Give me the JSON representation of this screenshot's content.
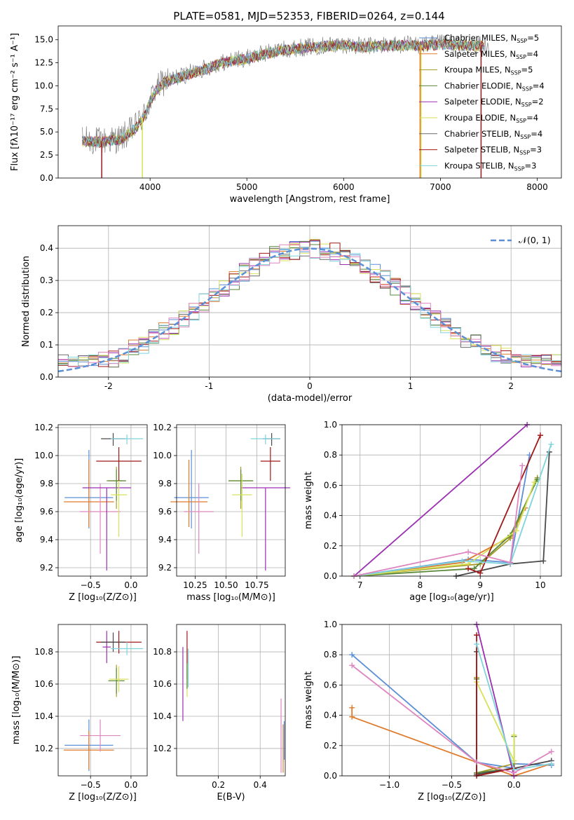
{
  "title": "PLATE=0581, MJD=52353, FIBERID=0264, z=0.144",
  "colors": {
    "blue": "#5b8fd6",
    "orange": "#e07b2c",
    "olive": "#a89a2a",
    "green": "#5a8a3a",
    "purple": "#9a2fb0",
    "yellow": "#d6e25a",
    "gray": "#6b6b6b",
    "red": "#a01818",
    "cyan": "#7fd3dc",
    "pink": "#de86bf",
    "dark": "#4a4a4a",
    "lime": "#c9e55b",
    "dash": "#5b8fd6"
  },
  "chart_data": [
    {
      "id": "spectrum",
      "type": "line",
      "title": "PLATE=0581, MJD=52353, FIBERID=0264, z=0.144",
      "xlabel": "wavelength [Angstrom, rest frame]",
      "ylabel": "Flux [fλ10⁻¹⁷ erg cm⁻² s⁻¹ A⁻¹]",
      "xlim": [
        3050,
        8250
      ],
      "ylim": [
        0,
        16.5
      ],
      "xticks": [
        4000,
        5000,
        6000,
        7000,
        8000
      ],
      "yticks": [
        0.0,
        2.5,
        5.0,
        7.5,
        10.0,
        12.5,
        15.0
      ],
      "grid": false,
      "legend_position": "top-right",
      "continuum": {
        "x": [
          3300,
          3500,
          3700,
          3850,
          3950,
          4050,
          4150,
          4300,
          4500,
          4700,
          4850,
          5000,
          5200,
          5400,
          5600,
          5800,
          6000,
          6200,
          6400,
          6600,
          6800,
          7000,
          7200,
          7400
        ],
        "y": [
          4.1,
          4.0,
          4.3,
          5.5,
          7.0,
          9.5,
          10.5,
          11.0,
          11.7,
          12.4,
          12.8,
          13.0,
          13.6,
          14.0,
          14.2,
          14.4,
          14.5,
          14.3,
          14.4,
          14.5,
          14.4,
          14.6,
          14.5,
          14.4
        ]
      },
      "series": [
        {
          "name": "Chabrier MILES, N$_{SSP}$=5",
          "label": "Chabrier MILES, N",
          "n": "5",
          "color": "#5b8fd6"
        },
        {
          "name": "Salpeter MILES, N$_{SSP}$=4",
          "label": "Salpeter MILES, N",
          "n": "4",
          "color": "#e07b2c"
        },
        {
          "name": "Kroupa MILES, N$_{SSP}$=5",
          "label": "Kroupa MILES, N",
          "n": "5",
          "color": "#a89a2a"
        },
        {
          "name": "Chabrier ELODIE, N$_{SSP}$=4",
          "label": "Chabrier ELODIE, N",
          "n": "4",
          "color": "#5a8a3a"
        },
        {
          "name": "Salpeter ELODIE, N$_{SSP}$=2",
          "label": "Salpeter ELODIE, N",
          "n": "2",
          "color": "#9a2fb0"
        },
        {
          "name": "Kroupa ELODIE, N$_{SSP}$=4",
          "label": "Kroupa ELODIE, N",
          "n": "4",
          "color": "#d6e25a"
        },
        {
          "name": "Chabrier STELIB, N$_{SSP}$=4",
          "label": "Chabrier STELIB, N",
          "n": "4",
          "color": "#6b6b6b"
        },
        {
          "name": "Salpeter STELIB, N$_{SSP}$=3",
          "label": "Salpeter STELIB, N",
          "n": "3",
          "color": "#a01818"
        },
        {
          "name": "Kroupa STELIB, N$_{SSP}$=3",
          "label": "Kroupa STELIB, N",
          "n": "3",
          "color": "#7fd3dc"
        }
      ],
      "sub_label": "SSP",
      "spikes": [
        {
          "x": 3500,
          "color": "#a01818"
        },
        {
          "x": 3920,
          "color": "#d6e25a"
        },
        {
          "x": 6800,
          "color": "#d6e25a"
        },
        {
          "x": 6790,
          "color": "#e07b2c"
        },
        {
          "x": 7420,
          "color": "#a01818"
        }
      ]
    },
    {
      "id": "residuals",
      "type": "line",
      "xlabel": "(data-model)/error",
      "ylabel": "Normed distribution",
      "xlim": [
        -2.5,
        2.5
      ],
      "ylim": [
        0,
        0.47
      ],
      "xticks": [
        -2,
        -1,
        0,
        1,
        2
      ],
      "yticks": [
        0.0,
        0.1,
        0.2,
        0.3,
        0.4
      ],
      "grid": true,
      "legend_position": "top-right",
      "legend_label": "𝒩(0, 1)",
      "bin_width": 0.1,
      "hist_colors": [
        "#5b8fd6",
        "#e07b2c",
        "#5a8a3a",
        "#9a2fb0",
        "#d6e25a",
        "#6b6b6b",
        "#a01818",
        "#7fd3dc",
        "#de86bf"
      ]
    },
    {
      "id": "age-vs-Z",
      "type": "scatter",
      "xlabel": "Z [log₁₀(Z/Z⊙)]",
      "ylabel": "age  [log₁₀(age/yr)]",
      "xlim": [
        -0.9,
        0.2
      ],
      "ylim": [
        9.14,
        10.22
      ],
      "xticks": [
        -0.5,
        0.0
      ],
      "xticklabels": [
        "−0.5",
        "0.0"
      ],
      "yticks": [
        9.2,
        9.4,
        9.6,
        9.8,
        10.0,
        10.2
      ],
      "grid": true,
      "points": [
        {
          "x": -0.52,
          "y": 9.7,
          "xerr": 0.3,
          "yerr_lo": 0.22,
          "yerr_hi": 0.34,
          "color": "#5b8fd6"
        },
        {
          "x": -0.52,
          "y": 9.67,
          "xerr": 0.31,
          "yerr_lo": 0.18,
          "yerr_hi": 0.3,
          "color": "#e07b2c"
        },
        {
          "x": -0.38,
          "y": 9.6,
          "xerr": 0.25,
          "yerr_lo": 0.3,
          "yerr_hi": 0.2,
          "color": "#de86bf"
        },
        {
          "x": -0.3,
          "y": 9.77,
          "xerr": 0.3,
          "yerr_lo": 0.59,
          "yerr_hi": 0.0,
          "color": "#9a2fb0"
        },
        {
          "x": -0.18,
          "y": 9.82,
          "xerr": 0.1,
          "yerr_lo": 0.2,
          "yerr_hi": 0.1,
          "color": "#a89a2a"
        },
        {
          "x": -0.18,
          "y": 9.82,
          "xerr": 0.12,
          "yerr_lo": 0.14,
          "yerr_hi": 0.08,
          "color": "#5a8a3a"
        },
        {
          "x": -0.15,
          "y": 9.72,
          "xerr": 0.1,
          "yerr_lo": 0.3,
          "yerr_hi": 0.15,
          "color": "#d6e25a"
        },
        {
          "x": -0.15,
          "y": 9.96,
          "xerr": 0.28,
          "yerr_lo": 0.14,
          "yerr_hi": 0.1,
          "color": "#a01818"
        },
        {
          "x": -0.22,
          "y": 10.12,
          "xerr": 0.15,
          "yerr_lo": 0.05,
          "yerr_hi": 0.04,
          "color": "#4a4a4a"
        },
        {
          "x": -0.05,
          "y": 10.12,
          "xerr": 0.2,
          "yerr_lo": 0.04,
          "yerr_hi": 0.03,
          "color": "#7fd3dc"
        }
      ]
    },
    {
      "id": "age-vs-mass",
      "type": "scatter",
      "xlabel": "mass [log₁₀(M/M⊙)]",
      "ylabel": "",
      "xlim": [
        10.1,
        10.98
      ],
      "ylim": [
        9.14,
        10.22
      ],
      "xticks": [
        10.25,
        10.5,
        10.75
      ],
      "xticklabels": [
        "10.25",
        "10.50",
        "10.75"
      ],
      "yticks": [
        9.2,
        9.4,
        9.6,
        9.8,
        10.0,
        10.2
      ],
      "grid": true,
      "points": [
        {
          "x": 10.22,
          "y": 9.7,
          "xerr": 0.14,
          "yerr_lo": 0.22,
          "yerr_hi": 0.34,
          "color": "#5b8fd6"
        },
        {
          "x": 10.2,
          "y": 9.67,
          "xerr": 0.15,
          "yerr_lo": 0.18,
          "yerr_hi": 0.3,
          "color": "#e07b2c"
        },
        {
          "x": 10.28,
          "y": 9.6,
          "xerr": 0.12,
          "yerr_lo": 0.3,
          "yerr_hi": 0.2,
          "color": "#de86bf"
        },
        {
          "x": 10.82,
          "y": 9.77,
          "xerr": 0.2,
          "yerr_lo": 0.59,
          "yerr_hi": 0.0,
          "color": "#9a2fb0"
        },
        {
          "x": 10.62,
          "y": 9.82,
          "xerr": 0.1,
          "yerr_lo": 0.2,
          "yerr_hi": 0.1,
          "color": "#a89a2a"
        },
        {
          "x": 10.62,
          "y": 9.82,
          "xerr": 0.1,
          "yerr_lo": 0.14,
          "yerr_hi": 0.08,
          "color": "#5a8a3a"
        },
        {
          "x": 10.63,
          "y": 9.72,
          "xerr": 0.08,
          "yerr_lo": 0.3,
          "yerr_hi": 0.15,
          "color": "#d6e25a"
        },
        {
          "x": 10.86,
          "y": 9.96,
          "xerr": 0.08,
          "yerr_lo": 0.14,
          "yerr_hi": 0.1,
          "color": "#a01818"
        },
        {
          "x": 10.87,
          "y": 10.12,
          "xerr": 0.07,
          "yerr_lo": 0.05,
          "yerr_hi": 0.04,
          "color": "#4a4a4a"
        },
        {
          "x": 10.82,
          "y": 10.12,
          "xerr": 0.12,
          "yerr_lo": 0.04,
          "yerr_hi": 0.03,
          "color": "#7fd3dc"
        }
      ]
    },
    {
      "id": "massweight-vs-age",
      "type": "line",
      "xlabel": "age  [log₁₀(age/yr)]",
      "ylabel": "mass weight",
      "xlim": [
        6.7,
        10.35
      ],
      "ylim": [
        0,
        1.0
      ],
      "xticks": [
        7,
        8,
        9,
        10
      ],
      "yticks": [
        0.0,
        0.2,
        0.4,
        0.6,
        0.8,
        1.0
      ],
      "grid": true,
      "series": [
        {
          "color": "#5b8fd6",
          "x": [
            6.9,
            8.8,
            9.5,
            9.82
          ],
          "y": [
            0.0,
            0.11,
            0.09,
            0.8
          ]
        },
        {
          "color": "#e07b2c",
          "x": [
            6.9,
            8.7,
            9.5,
            9.75
          ],
          "y": [
            0.0,
            0.09,
            0.26,
            0.45
          ]
        },
        {
          "color": "#a89a2a",
          "x": [
            6.9,
            9.0,
            9.5,
            9.95
          ],
          "y": [
            0.0,
            0.08,
            0.25,
            0.65
          ]
        },
        {
          "color": "#5a8a3a",
          "x": [
            6.9,
            8.9,
            9.5,
            9.95
          ],
          "y": [
            0.0,
            0.05,
            0.27,
            0.64
          ]
        },
        {
          "color": "#9a2fb0",
          "x": [
            6.9,
            9.78
          ],
          "y": [
            0.0,
            1.0
          ]
        },
        {
          "color": "#d6e25a",
          "x": [
            6.9,
            8.8,
            9.6,
            9.9
          ],
          "y": [
            0.0,
            0.08,
            0.3,
            0.62
          ]
        },
        {
          "color": "#4a4a4a",
          "x": [
            8.6,
            9.5,
            10.05,
            10.15
          ],
          "y": [
            0.0,
            0.08,
            0.1,
            0.82
          ]
        },
        {
          "color": "#a01818",
          "x": [
            8.8,
            9.0,
            10.0
          ],
          "y": [
            0.05,
            0.02,
            0.93
          ]
        },
        {
          "color": "#7fd3dc",
          "x": [
            6.9,
            8.7,
            9.5,
            10.18
          ],
          "y": [
            0.0,
            0.1,
            0.08,
            0.87
          ]
        },
        {
          "color": "#de86bf",
          "x": [
            6.9,
            8.8,
            9.5,
            9.7
          ],
          "y": [
            0.0,
            0.16,
            0.09,
            0.73
          ]
        }
      ]
    },
    {
      "id": "mass-vs-Z",
      "type": "scatter",
      "xlabel": "Z [log₁₀(Z/Z⊙)]",
      "ylabel": "mass [log₁₀(M/M⊙)]",
      "xlim": [
        -0.9,
        0.2
      ],
      "ylim": [
        10.03,
        10.97
      ],
      "xticks": [
        -0.5,
        0.0
      ],
      "xticklabels": [
        "−0.5",
        "0.0"
      ],
      "yticks": [
        10.2,
        10.4,
        10.6,
        10.8
      ],
      "grid": true,
      "points": [
        {
          "x": -0.52,
          "y": 10.22,
          "xerr": 0.3,
          "yerr": 0.16,
          "color": "#5b8fd6"
        },
        {
          "x": -0.52,
          "y": 10.19,
          "xerr": 0.31,
          "yerr": 0.12,
          "color": "#e07b2c"
        },
        {
          "x": -0.38,
          "y": 10.28,
          "xerr": 0.25,
          "yerr": 0.1,
          "color": "#de86bf"
        },
        {
          "x": -0.3,
          "y": 10.83,
          "xerr": 0.05,
          "yerr": 0.1,
          "color": "#9a2fb0"
        },
        {
          "x": -0.18,
          "y": 10.62,
          "xerr": 0.1,
          "yerr": 0.1,
          "color": "#a89a2a"
        },
        {
          "x": -0.18,
          "y": 10.62,
          "xerr": 0.1,
          "yerr": 0.08,
          "color": "#5a8a3a"
        },
        {
          "x": -0.15,
          "y": 10.63,
          "xerr": 0.12,
          "yerr": 0.08,
          "color": "#d6e25a"
        },
        {
          "x": -0.15,
          "y": 10.86,
          "xerr": 0.28,
          "yerr": 0.07,
          "color": "#a01818"
        },
        {
          "x": -0.22,
          "y": 10.86,
          "xerr": 0.15,
          "yerr": 0.06,
          "color": "#4a4a4a"
        },
        {
          "x": -0.05,
          "y": 10.82,
          "xerr": 0.2,
          "yerr": 0.04,
          "color": "#7fd3dc"
        }
      ]
    },
    {
      "id": "mass-vs-EBV",
      "type": "scatter",
      "xlabel": "E(B-V)",
      "ylabel": "",
      "xlim": [
        0.0,
        0.52
      ],
      "ylim": [
        10.03,
        10.97
      ],
      "xticks": [
        0.2,
        0.4
      ],
      "xticklabels": [
        "0.2",
        "0.4"
      ],
      "yticks": [
        10.2,
        10.4,
        10.6,
        10.8
      ],
      "grid": true,
      "points": [
        {
          "x": 0.03,
          "y": 10.6,
          "yerr": 0.23,
          "color": "#9a2fb0"
        },
        {
          "x": 0.05,
          "y": 10.78,
          "yerr": 0.15,
          "color": "#a01818"
        },
        {
          "x": 0.055,
          "y": 10.7,
          "yerr": 0.12,
          "color": "#7fd3dc"
        },
        {
          "x": 0.05,
          "y": 10.62,
          "yerr": 0.1,
          "color": "#d6e25a"
        },
        {
          "x": 0.05,
          "y": 10.65,
          "yerr": 0.08,
          "color": "#5a8a3a"
        },
        {
          "x": 0.5,
          "y": 10.28,
          "yerr": 0.23,
          "color": "#de86bf"
        },
        {
          "x": 0.51,
          "y": 10.2,
          "yerr": 0.15,
          "color": "#e07b2c"
        },
        {
          "x": 0.515,
          "y": 10.25,
          "yerr": 0.12,
          "color": "#5b8fd6"
        }
      ]
    },
    {
      "id": "massweight-vs-Z",
      "type": "line",
      "xlabel": "Z [log₁₀(Z/Z⊙)]",
      "ylabel": "mass weight",
      "xlim": [
        -1.38,
        0.38
      ],
      "ylim": [
        0,
        1.0
      ],
      "xticks": [
        -1.0,
        -0.5,
        0.0
      ],
      "xticklabels": [
        "−1.0",
        "−0.5",
        "0.0"
      ],
      "yticks": [
        0.0,
        0.2,
        0.4,
        0.6,
        0.8,
        1.0
      ],
      "grid": true,
      "series": [
        {
          "color": "#5b8fd6",
          "x": [
            -1.3,
            -0.3,
            0.0,
            0.0,
            0.3
          ],
          "y": [
            0.8,
            0.09,
            0.05,
            0.08,
            0.07
          ]
        },
        {
          "color": "#e07b2c",
          "x": [
            -1.3,
            -1.3,
            0.0,
            0.3
          ],
          "y": [
            0.45,
            0.39,
            0.0,
            0.08
          ]
        },
        {
          "color": "#a89a2a",
          "x": [
            -0.3,
            -0.3,
            0.0,
            0.0
          ],
          "y": [
            0.65,
            0.02,
            0.08,
            0.26
          ]
        },
        {
          "color": "#5a8a3a",
          "x": [
            -0.3,
            -0.3,
            0.0,
            0.0
          ],
          "y": [
            0.64,
            0.02,
            0.05,
            0.26
          ]
        },
        {
          "color": "#9a2fb0",
          "x": [
            -0.3,
            0.0
          ],
          "y": [
            1.0,
            0.0
          ]
        },
        {
          "color": "#d6e25a",
          "x": [
            -0.3,
            0.0,
            0.0
          ],
          "y": [
            0.62,
            0.1,
            0.27
          ]
        },
        {
          "color": "#4a4a4a",
          "x": [
            -0.3,
            -0.3,
            0.0,
            0.3
          ],
          "y": [
            0.82,
            0.01,
            0.05,
            0.1
          ]
        },
        {
          "color": "#a01818",
          "x": [
            -0.3,
            -0.3,
            0.0
          ],
          "y": [
            0.93,
            0.0,
            0.05
          ]
        },
        {
          "color": "#7fd3dc",
          "x": [
            -0.3,
            0.0,
            0.3
          ],
          "y": [
            0.87,
            0.04,
            0.08
          ]
        },
        {
          "color": "#de86bf",
          "x": [
            -1.3,
            -0.3,
            0.0,
            0.3
          ],
          "y": [
            0.73,
            0.09,
            0.02,
            0.16
          ]
        }
      ]
    }
  ]
}
